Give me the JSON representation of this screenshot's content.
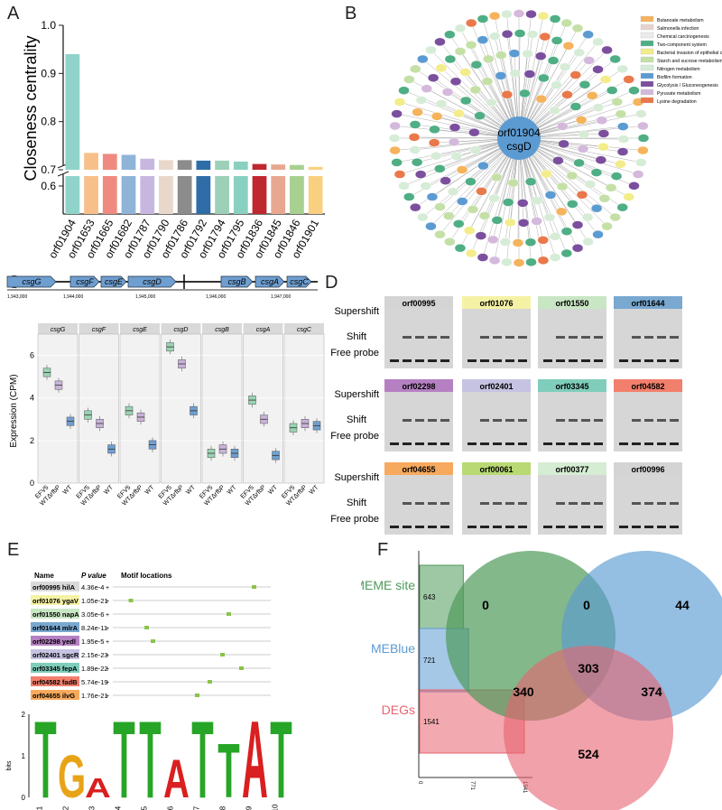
{
  "panel_labels": [
    "A",
    "B",
    "C",
    "D",
    "E",
    "F"
  ],
  "chart_data": [
    {
      "panel": "A",
      "type": "bar",
      "ylabel": "Closeness centrality",
      "categories": [
        "orf01904",
        "orf01653",
        "orf01665",
        "orf01682",
        "orf01787",
        "orf01790",
        "orf01786",
        "orf01792",
        "orf01794",
        "orf01795",
        "orf01836",
        "orf01845",
        "orf01846",
        "orf01901"
      ],
      "values": [
        0.94,
        0.735,
        0.733,
        0.731,
        0.723,
        0.72,
        0.72,
        0.719,
        0.719,
        0.717,
        0.712,
        0.711,
        0.71,
        0.706
      ],
      "colors": [
        "#8fd3c9",
        "#f7c08a",
        "#f08a80",
        "#8fb4d8",
        "#c7b7e0",
        "#e8d8cc",
        "#8c8c8c",
        "#2e6da8",
        "#9cd0b8",
        "#8ad0c0",
        "#c0282f",
        "#e8a890",
        "#a8d090",
        "#f8d080"
      ],
      "yticks": [
        "0.6",
        "0.7",
        "0.8",
        "0.9",
        "1.0"
      ],
      "broken_axis": true
    },
    {
      "panel": "B",
      "type": "network",
      "center_labels": [
        "orf01904",
        "csgD"
      ],
      "legend": [
        {
          "label": "Butanoate metabolism",
          "color": "#f5b35c"
        },
        {
          "label": "Salmonella infection",
          "color": "#e6d3cf"
        },
        {
          "label": "Chemical carcinogenesis",
          "color": "#ececec"
        },
        {
          "label": "Two-component system",
          "color": "#4fae84"
        },
        {
          "label": "Bacterial invasion of epithelial cells",
          "color": "#f3ec8a"
        },
        {
          "label": "Starch and sucrose metabolism",
          "color": "#c4e0a7"
        },
        {
          "label": "Nitrogen metabolism",
          "color": "#d6ecd7"
        },
        {
          "label": "Biofilm formation",
          "color": "#5b9bd2"
        },
        {
          "label": "Glycolysis / Gluconeogenesis",
          "color": "#7b4f9d"
        },
        {
          "label": "Pyruvate metabolism",
          "color": "#d4b9dc"
        },
        {
          "label": "Lysine degradation",
          "color": "#e9784a"
        }
      ]
    },
    {
      "panel": "C",
      "type": "box",
      "ylabel": "Expression (CPM)",
      "genes": [
        "csgG",
        "csgF",
        "csgE",
        "csgD",
        "csgB",
        "csgA",
        "csgC"
      ],
      "groups": [
        "EFV5",
        "WTΔrfbP",
        "WT"
      ],
      "group_colors": [
        "#9bd3b3",
        "#c9b3d9",
        "#6f9fd0"
      ],
      "yticks": [
        "0",
        "2",
        "4",
        "6"
      ],
      "ylim": [
        0,
        7
      ],
      "medians": [
        [
          5.2,
          4.6,
          2.9
        ],
        [
          3.2,
          2.8,
          1.6
        ],
        [
          3.4,
          3.1,
          1.8
        ],
        [
          6.4,
          5.6,
          3.4
        ],
        [
          1.4,
          1.6,
          1.4
        ],
        [
          3.9,
          3.0,
          1.3
        ],
        [
          2.6,
          2.8,
          2.7
        ]
      ],
      "genome_ticks": [
        "1,943,000",
        "1,944,000",
        "1,945,000",
        "1,946,000",
        "1,947,000"
      ]
    },
    {
      "panel": "D",
      "type": "gel",
      "row_labels": [
        "Supershift",
        "Shift",
        "Free probe"
      ],
      "genes": [
        {
          "name": "orf00995",
          "color": "#d4d4d4"
        },
        {
          "name": "orf01076",
          "color": "#f5f2a5"
        },
        {
          "name": "orf01550",
          "color": "#c9e6c4"
        },
        {
          "name": "orf01644",
          "color": "#79a8d0"
        },
        {
          "name": "orf02298",
          "color": "#b580c2"
        },
        {
          "name": "orf02401",
          "color": "#c6c3e2"
        },
        {
          "name": "orf03345",
          "color": "#7fcdbb"
        },
        {
          "name": "orf04582",
          "color": "#f27f6c"
        },
        {
          "name": "orf04655",
          "color": "#f7aa5e"
        },
        {
          "name": "orf00061",
          "color": "#b9d974"
        },
        {
          "name": "orf00377",
          "color": "#d5edd2"
        },
        {
          "name": "orf00996",
          "color": "#d4d4d4"
        }
      ]
    },
    {
      "panel": "E",
      "type": "table",
      "headers": [
        "Name",
        "P value",
        "Motif locations"
      ],
      "rows": [
        {
          "name": "orf00995 hilA",
          "p": "4.36e-4",
          "color": "#d9d9d9",
          "strand": "+",
          "pos": 0.88
        },
        {
          "name": "orf01076 ygaV",
          "p": "1.05e-21",
          "color": "#f5f2a5",
          "strand": "+",
          "pos": 0.1
        },
        {
          "name": "orf01550 napA",
          "p": "3.05e-6",
          "color": "#c9e6c4",
          "strand": "+",
          "pos": 0.72
        },
        {
          "name": "orf01644 mlrA",
          "p": "8.24e-11",
          "color": "#79a8d0",
          "strand": "+",
          "pos": 0.2
        },
        {
          "name": "orf02298 yedl",
          "p": "1.95e-5",
          "color": "#b580c2",
          "strand": "+",
          "pos": 0.24
        },
        {
          "name": "orf02401 sgcR",
          "p": "2.15e-23",
          "color": "#c6c3e2",
          "strand": "+",
          "pos": 0.68
        },
        {
          "name": "orf03345 fepA",
          "p": "1.89e-22",
          "color": "#7fcdbb",
          "strand": "+",
          "pos": 0.8
        },
        {
          "name": "orf04582 fadB",
          "p": "5.74e-19",
          "color": "#f27f6c",
          "strand": "+",
          "pos": 0.6
        },
        {
          "name": "orf04655 ilvG",
          "p": "1.76e-21",
          "color": "#f7aa5e",
          "strand": "+",
          "pos": 0.52
        }
      ],
      "logo": {
        "ylabel": "bits",
        "yticks": [
          "0",
          "1",
          "2"
        ],
        "positions": [
          "1",
          "2",
          "3",
          "4",
          "5",
          "6",
          "7",
          "8",
          "9",
          "10"
        ],
        "letters": [
          "T",
          "G",
          "A",
          "T",
          "T",
          "A",
          "T",
          "T",
          "A",
          "T"
        ]
      }
    },
    {
      "panel": "F",
      "type": "venn",
      "sets": [
        {
          "name": "MEME site",
          "size": 643,
          "color": "#4e9a5a"
        },
        {
          "name": "MEBlue",
          "size": 721,
          "color": "#5b9bd2"
        },
        {
          "name": "DEGs",
          "size": 1541,
          "color": "#e8636f"
        }
      ],
      "regions": {
        "meme_only": "0",
        "meme_blue": "0",
        "blue_only": "44",
        "meme_deg": "340",
        "all": "303",
        "blue_deg": "374",
        "deg_only": "524"
      },
      "axis_ticks": [
        "0",
        "771",
        "1541"
      ]
    }
  ]
}
